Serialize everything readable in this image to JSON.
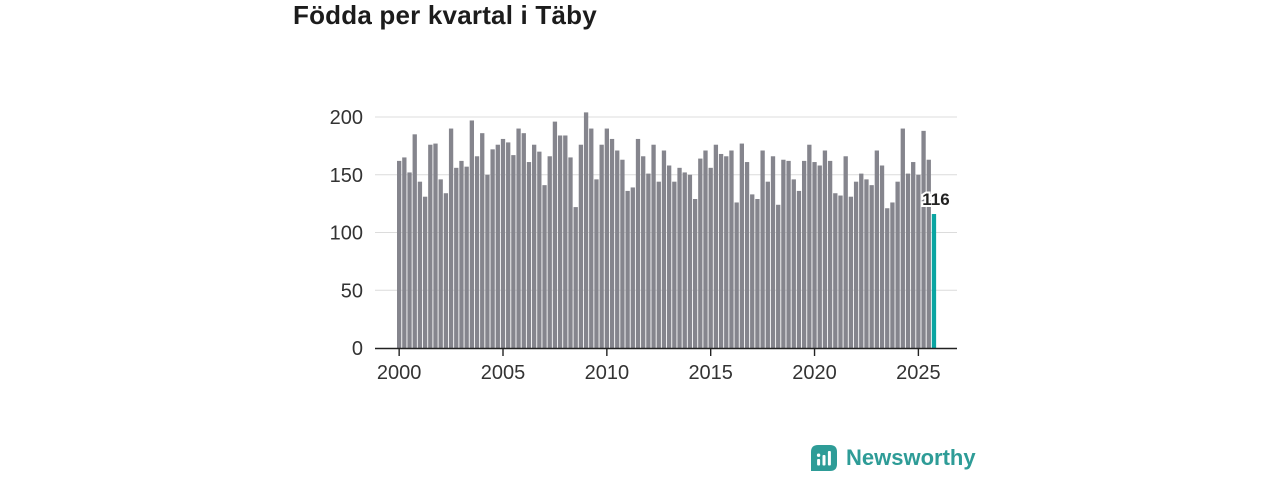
{
  "chart_data": {
    "type": "bar",
    "title": "Födda per kvartal i Täby",
    "xlabel": "",
    "ylabel": "",
    "frequency": "quarterly",
    "x_start_year": 2000,
    "x_tick_labels": [
      "2000",
      "2005",
      "2010",
      "2015",
      "2020",
      "2025"
    ],
    "x_tick_indices": [
      0,
      20,
      40,
      60,
      80,
      100
    ],
    "y_ticks": [
      0,
      50,
      100,
      150,
      200
    ],
    "ylim": [
      0,
      210
    ],
    "grid": true,
    "legend": "none",
    "bar_color": "#85858D",
    "highlight_color": "#0AA5A2",
    "highlight_index": 103,
    "last_value_label": "116",
    "values": [
      162,
      165,
      152,
      185,
      144,
      131,
      176,
      177,
      146,
      134,
      190,
      156,
      162,
      157,
      197,
      166,
      186,
      150,
      172,
      176,
      181,
      178,
      167,
      190,
      186,
      161,
      176,
      170,
      141,
      166,
      196,
      184,
      184,
      165,
      122,
      176,
      204,
      190,
      146,
      176,
      190,
      181,
      171,
      163,
      136,
      139,
      181,
      166,
      151,
      176,
      144,
      171,
      158,
      144,
      156,
      152,
      150,
      129,
      164,
      171,
      156,
      176,
      168,
      166,
      171,
      126,
      177,
      161,
      133,
      129,
      171,
      144,
      166,
      124,
      163,
      162,
      146,
      136,
      162,
      176,
      161,
      158,
      171,
      162,
      134,
      132,
      166,
      131,
      144,
      151,
      146,
      141,
      171,
      158,
      121,
      126,
      144,
      190,
      151,
      161,
      150,
      188,
      163,
      116
    ]
  },
  "branding": {
    "label": "Newsworthy",
    "color": "#2E9C97",
    "icon": "bar-chart-bubble-icon"
  },
  "style": {
    "axis_color": "#222222",
    "grid_color": "#DCDCDC",
    "tick_label_color": "#333333",
    "value_label_color": "#222222"
  }
}
